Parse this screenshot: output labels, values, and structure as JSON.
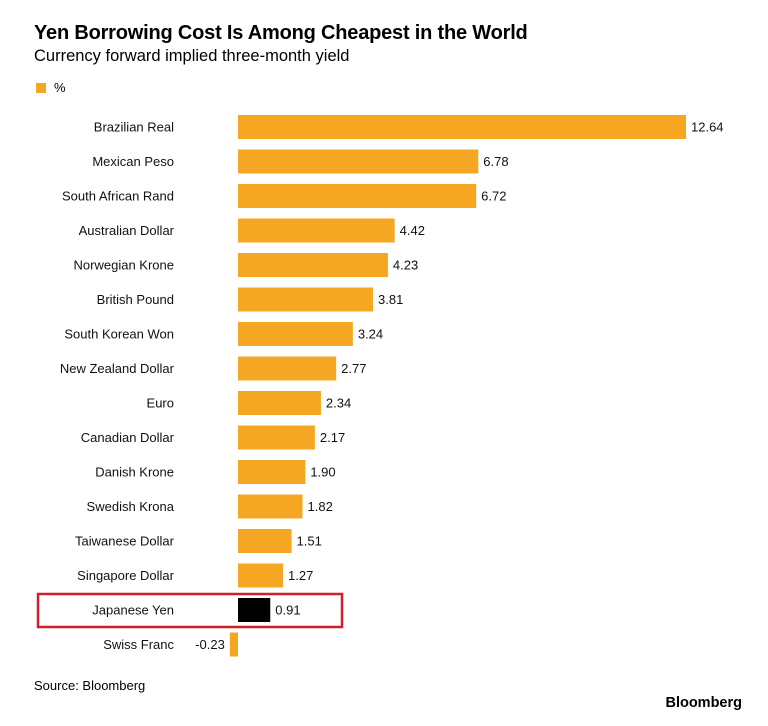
{
  "chart_data": {
    "type": "bar",
    "orientation": "horizontal",
    "title": "Yen Borrowing Cost Is Among Cheapest in the World",
    "subtitle": "Currency forward implied three-month yield",
    "legend": [
      {
        "name": "%",
        "color": "#F5A623"
      }
    ],
    "categories": [
      "Brazilian Real",
      "Mexican Peso",
      "South African Rand",
      "Australian Dollar",
      "Norwegian Krone",
      "British Pound",
      "South Korean Won",
      "New Zealand Dollar",
      "Euro",
      "Canadian Dollar",
      "Danish Krone",
      "Swedish Krona",
      "Taiwanese Dollar",
      "Singapore Dollar",
      "Japanese Yen",
      "Swiss Franc"
    ],
    "series": [
      {
        "name": "%",
        "values": [
          12.64,
          6.78,
          6.72,
          4.42,
          4.23,
          3.81,
          3.24,
          2.77,
          2.34,
          2.17,
          1.9,
          1.82,
          1.51,
          1.27,
          0.91,
          -0.23
        ]
      }
    ],
    "value_labels": [
      "12.64",
      "6.78",
      "6.72",
      "4.42",
      "4.23",
      "3.81",
      "3.24",
      "2.77",
      "2.34",
      "2.17",
      "1.90",
      "1.82",
      "1.51",
      "1.27",
      "0.91",
      "-0.23"
    ],
    "highlight": {
      "category": "Japanese Yen",
      "bar_color": "#000000",
      "box_color": "#D0202A"
    },
    "xlim": [
      -0.3,
      12.7
    ],
    "grid": false,
    "colors": {
      "bar": "#F5A623",
      "highlight": "#000000",
      "box": "#D0202A"
    }
  },
  "footer": {
    "source": "Source: Bloomberg",
    "brand": "Bloomberg"
  }
}
